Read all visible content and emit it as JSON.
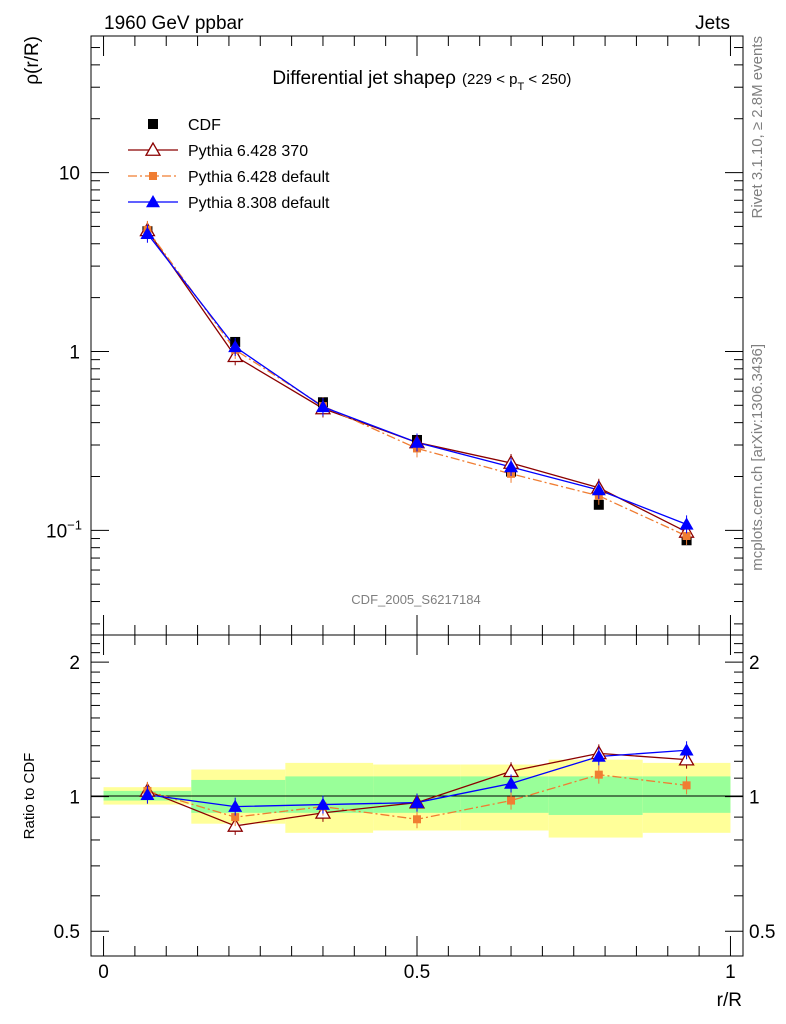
{
  "header": {
    "left_title": "1960 GeV ppbar",
    "right_title": "Jets"
  },
  "side_text": {
    "top": "Rivet 3.1.10, ≥ 2.8M events",
    "bottom": "mcplots.cern.ch [arXiv:1306.3436]"
  },
  "watermark": "CDF_2005_S6217184",
  "colors": {
    "cdf": "#000000",
    "pythia6_370": "#8b0000",
    "pythia6_default": "#f07d32",
    "pythia8_default": "#0000ff",
    "band_inner": "#99ff99",
    "band_outer": "#ffff99"
  },
  "chart_data": [
    {
      "type": "line",
      "panel": "main",
      "title": "Differential jet shapeρ",
      "title_suffix": "(229 < p",
      "title_sub": "T",
      "title_end": " < 250)",
      "ylabel": "ρ(r/R)",
      "xlabel": "r/R",
      "yscale": "log",
      "xlim": [
        -0.02,
        1.02
      ],
      "ylim": [
        0.026,
        58
      ],
      "y_ticks": [
        {
          "value": 10,
          "label": "10"
        },
        {
          "value": 1,
          "label": "1"
        },
        {
          "value": 0.1,
          "label": "10−1"
        }
      ],
      "x": [
        0.07,
        0.21,
        0.35,
        0.5,
        0.65,
        0.79,
        0.93
      ],
      "series": [
        {
          "name": "CDF",
          "marker": "filled-square",
          "values": [
            4.7,
            1.13,
            0.52,
            0.32,
            0.213,
            0.139,
            0.088
          ]
        },
        {
          "name": "Pythia 6.428 370",
          "marker": "open-triangle",
          "values": [
            4.75,
            0.94,
            0.48,
            0.31,
            0.238,
            0.173,
            0.098
          ]
        },
        {
          "name": "Pythia 6.428 default",
          "marker": "filled-square-small",
          "dashed": true,
          "values": [
            4.78,
            1.02,
            0.495,
            0.287,
            0.207,
            0.156,
            0.093
          ]
        },
        {
          "name": "Pythia 8.308 default",
          "marker": "filled-triangle",
          "values": [
            4.55,
            1.06,
            0.49,
            0.31,
            0.226,
            0.168,
            0.108
          ]
        }
      ],
      "legend": "top-left"
    },
    {
      "type": "line",
      "panel": "ratio",
      "ylabel": "Ratio to CDF",
      "xlabel": "r/R",
      "yscale": "log",
      "xlim": [
        -0.02,
        1.02
      ],
      "ylim": [
        0.44,
        2.3
      ],
      "x_ticks": [
        {
          "value": 0,
          "label": "0"
        },
        {
          "value": 0.5,
          "label": "0.5"
        },
        {
          "value": 1,
          "label": "1"
        }
      ],
      "y_ticks": [
        {
          "value": 2,
          "label": "2"
        },
        {
          "value": 1,
          "label": "1"
        },
        {
          "value": 0.5,
          "label": "0.5"
        }
      ],
      "bands": [
        {
          "x0": 0.0,
          "x1": 0.14,
          "inner": [
            0.98,
            1.03
          ],
          "outer": [
            0.96,
            1.05
          ]
        },
        {
          "x0": 0.14,
          "x1": 0.29,
          "inner": [
            0.92,
            1.09
          ],
          "outer": [
            0.87,
            1.15
          ]
        },
        {
          "x0": 0.29,
          "x1": 0.43,
          "inner": [
            0.92,
            1.11
          ],
          "outer": [
            0.83,
            1.19
          ]
        },
        {
          "x0": 0.43,
          "x1": 0.57,
          "inner": [
            0.92,
            1.11
          ],
          "outer": [
            0.84,
            1.18
          ]
        },
        {
          "x0": 0.57,
          "x1": 0.71,
          "inner": [
            0.92,
            1.11
          ],
          "outer": [
            0.84,
            1.18
          ]
        },
        {
          "x0": 0.71,
          "x1": 0.86,
          "inner": [
            0.91,
            1.11
          ],
          "outer": [
            0.81,
            1.21
          ]
        },
        {
          "x0": 0.86,
          "x1": 1.0,
          "inner": [
            0.92,
            1.11
          ],
          "outer": [
            0.83,
            1.19
          ]
        }
      ],
      "x": [
        0.07,
        0.21,
        0.35,
        0.5,
        0.65,
        0.79,
        0.93
      ],
      "series": [
        {
          "name": "Pythia 6.428 370",
          "marker": "open-triangle",
          "values": [
            1.03,
            0.86,
            0.92,
            0.97,
            1.14,
            1.25,
            1.21
          ]
        },
        {
          "name": "Pythia 6.428 default",
          "marker": "filled-square-small",
          "dashed": true,
          "values": [
            1.03,
            0.9,
            0.95,
            0.89,
            0.98,
            1.12,
            1.06
          ]
        },
        {
          "name": "Pythia 8.308 default",
          "marker": "filled-triangle",
          "values": [
            1.01,
            0.95,
            0.96,
            0.97,
            1.07,
            1.23,
            1.27
          ]
        }
      ]
    }
  ]
}
